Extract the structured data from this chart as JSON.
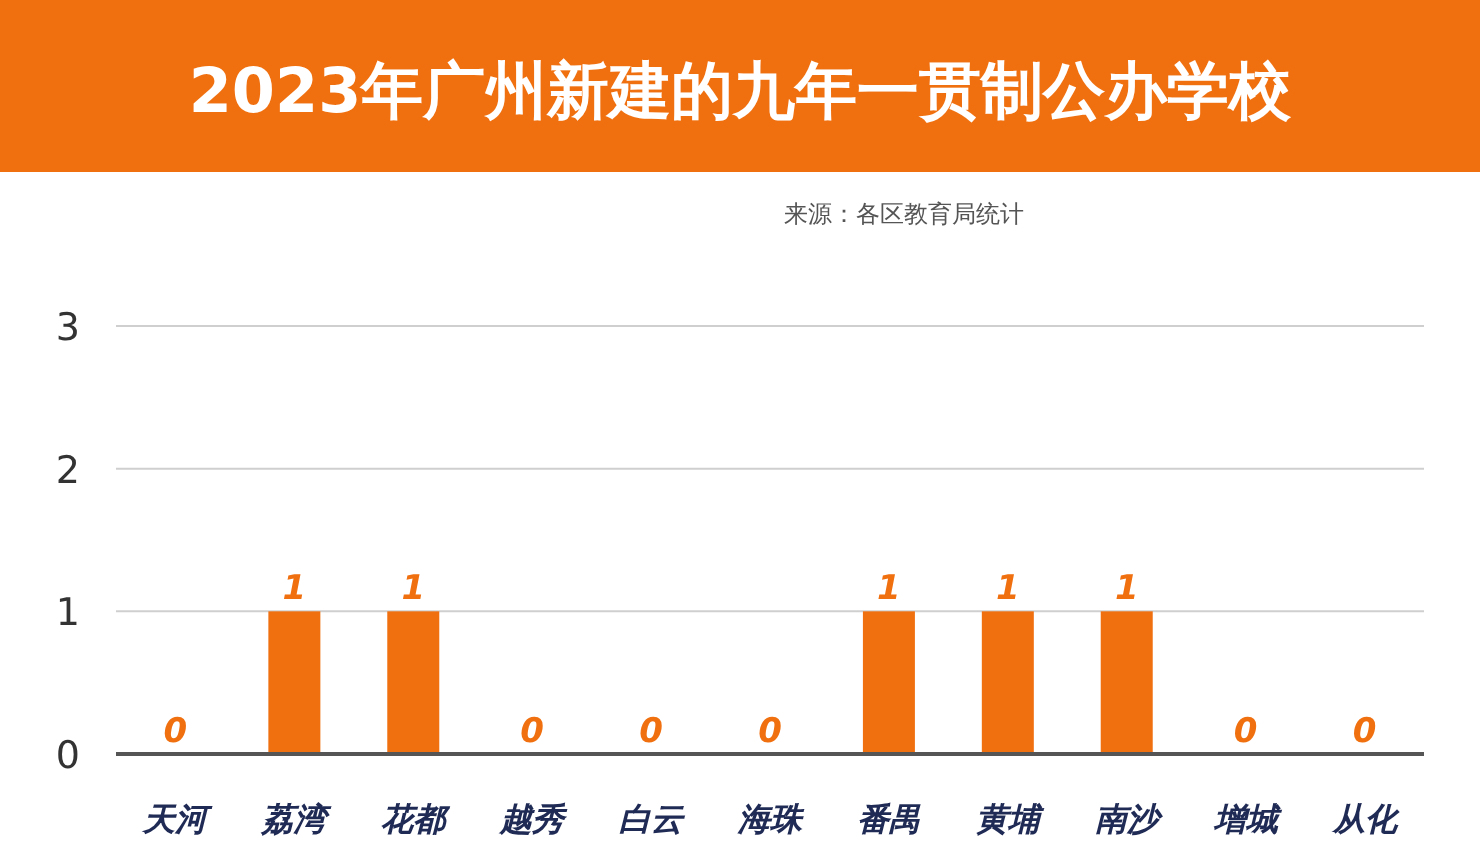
{
  "chart_data": {
    "type": "bar",
    "title": "2023年广州新建的九年一贯制公办学校",
    "annotations": [
      "来源：各区教育局统计"
    ],
    "categories": [
      "天河",
      "荔湾",
      "花都",
      "越秀",
      "白云",
      "海珠",
      "番禺",
      "黄埔",
      "南沙",
      "增城",
      "从化"
    ],
    "values": [
      0,
      1,
      1,
      0,
      0,
      0,
      1,
      1,
      1,
      0,
      0
    ],
    "color": "#f07010",
    "ylim": [
      0,
      3
    ],
    "yticks": [
      0,
      1,
      2,
      3
    ],
    "grid": "y",
    "data_labels": true
  }
}
